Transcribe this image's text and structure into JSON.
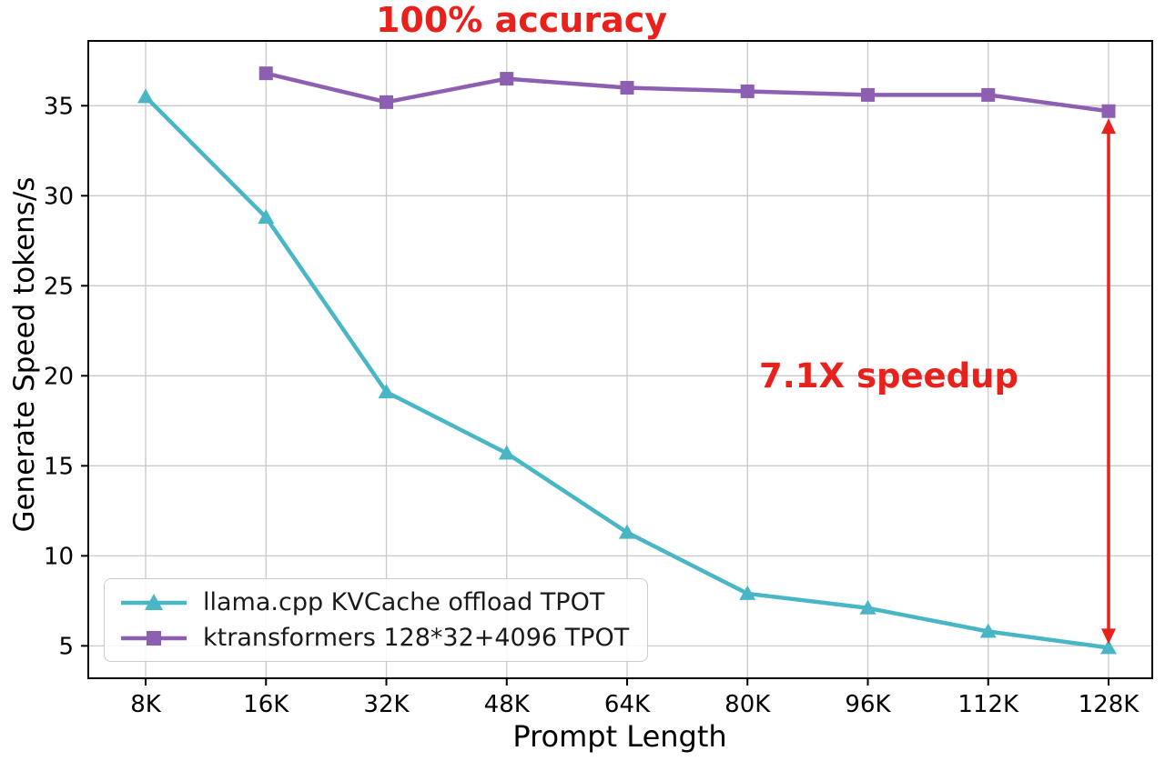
{
  "chart_data": {
    "type": "line",
    "title_annotation": "100% accuracy",
    "speedup_annotation": "7.1X speedup",
    "xlabel": "Prompt Length",
    "ylabel": "Generate Speed tokens/s",
    "categories": [
      "8K",
      "16K",
      "32K",
      "48K",
      "64K",
      "80K",
      "96K",
      "112K",
      "128K"
    ],
    "yticks": [
      5,
      10,
      15,
      20,
      25,
      30,
      35
    ],
    "ylim": [
      3.2,
      38.6
    ],
    "grid": true,
    "legend_position": "lower left",
    "series": [
      {
        "name": "llama.cpp KVCache offload TPOT",
        "color": "#49b6c5",
        "marker": "triangle",
        "values": [
          35.5,
          28.8,
          19.1,
          15.7,
          11.3,
          7.9,
          7.1,
          5.8,
          4.9
        ]
      },
      {
        "name": "ktransformers 128*32+4096 TPOT",
        "color": "#8c5fb3",
        "marker": "square",
        "values": [
          null,
          36.8,
          35.2,
          36.5,
          36.0,
          35.8,
          35.6,
          35.6,
          34.7
        ]
      }
    ],
    "arrow": {
      "x_category": "128K",
      "y_top": 34.3,
      "y_bottom": 5.1
    },
    "colors": {
      "annotation_red": "#e9211c",
      "axis_black": "#000000",
      "grid_gray": "#c9c9c9"
    }
  }
}
